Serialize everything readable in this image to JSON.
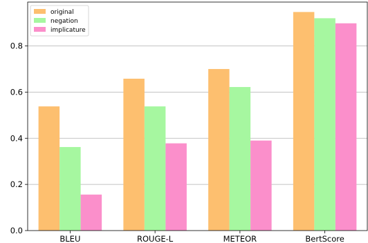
{
  "chart_data": {
    "type": "bar",
    "categories": [
      "BLEU",
      "ROUGE-L",
      "METEOR",
      "BertScore"
    ],
    "series": [
      {
        "name": "original",
        "color": "#fdbf6f",
        "values": [
          0.538,
          0.658,
          0.7,
          0.947
        ]
      },
      {
        "name": "negation",
        "color": "#a6f7a0",
        "values": [
          0.362,
          0.538,
          0.622,
          0.92
        ]
      },
      {
        "name": "implicature",
        "color": "#fb8fcb",
        "values": [
          0.156,
          0.378,
          0.39,
          0.898
        ]
      }
    ],
    "yticks": [
      "0.0",
      "0.2",
      "0.4",
      "0.6",
      "0.8"
    ],
    "ylim": [
      0,
      0.99
    ],
    "grid": "horizontal",
    "legend_position": "top-left"
  }
}
